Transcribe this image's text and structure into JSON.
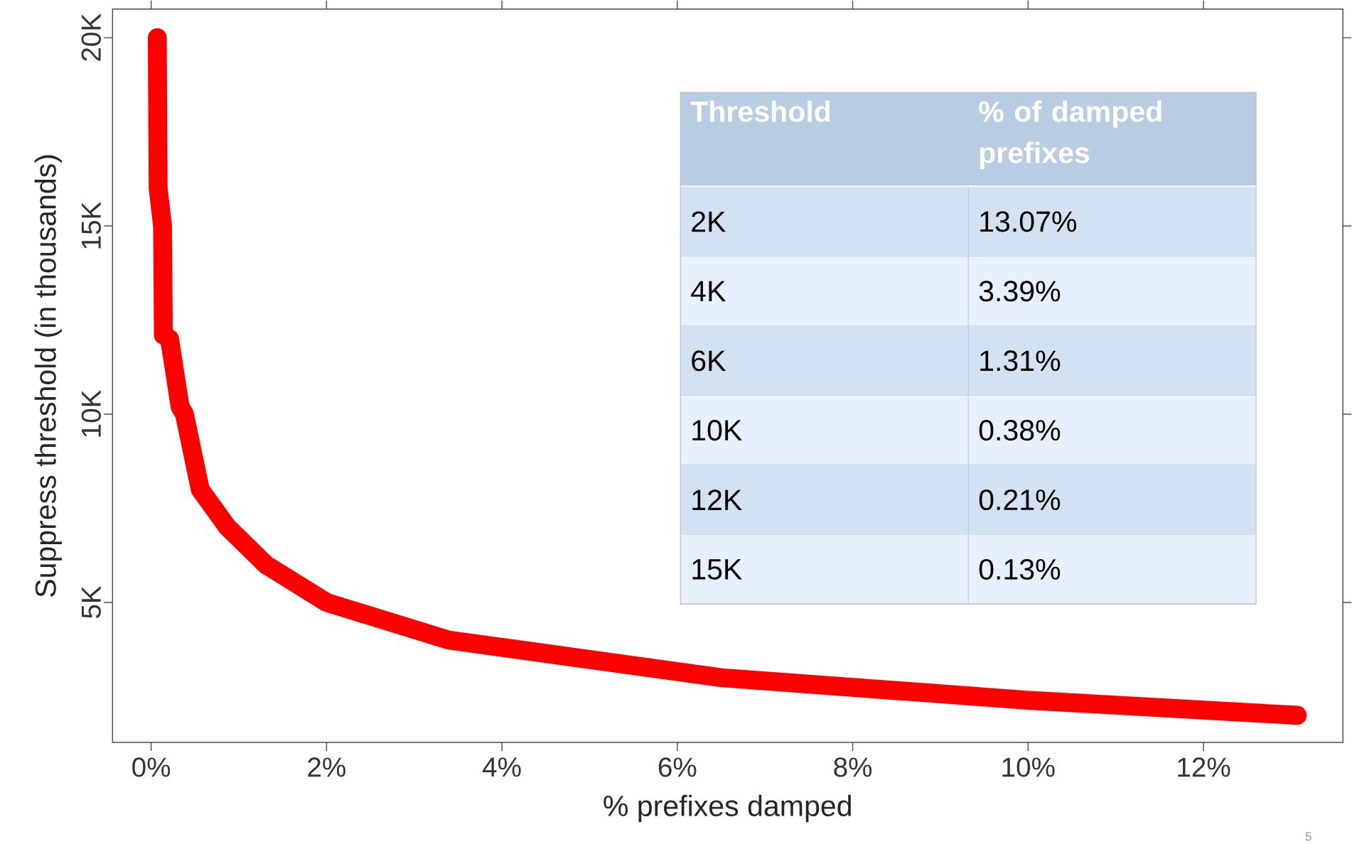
{
  "chart_data": {
    "type": "line",
    "xlabel": "% prefixes damped",
    "ylabel": "Suppress threshold (in thousands)",
    "xlim": [
      -0.44,
      13.59
    ],
    "ylim": [
      1.28,
      20.76
    ],
    "xticks": [
      {
        "value": 0,
        "label": "0%"
      },
      {
        "value": 2,
        "label": "2%"
      },
      {
        "value": 4,
        "label": "4%"
      },
      {
        "value": 6,
        "label": "6%"
      },
      {
        "value": 8,
        "label": "8%"
      },
      {
        "value": 10,
        "label": "10%"
      },
      {
        "value": 12,
        "label": "12%"
      }
    ],
    "yticks": [
      {
        "value": 5,
        "label": "5K"
      },
      {
        "value": 10,
        "label": "10K"
      },
      {
        "value": 15,
        "label": "15K"
      },
      {
        "value": 20,
        "label": "20K"
      }
    ],
    "grid": false,
    "marker": "none",
    "line_style": "solid",
    "series": [
      {
        "color": "#ff0000",
        "x": [
          0.07,
          0.08,
          0.13,
          0.14,
          0.21,
          0.33,
          0.38,
          0.56,
          0.87,
          1.31,
          2.0,
          3.39,
          6.5,
          10.0,
          13.07
        ],
        "values": [
          20,
          16,
          15,
          12.1,
          12,
          10.2,
          10,
          8,
          7,
          6,
          5,
          4,
          3,
          2.4,
          2
        ]
      }
    ],
    "annotations": [
      "Threshold",
      "% of damped prefixes",
      "2K",
      "13.07%",
      "4K",
      "3.39%",
      "6K",
      "1.31%",
      "10K",
      "0.38%",
      "12K",
      "0.21%",
      "15K",
      "0.13%",
      "5"
    ]
  }
}
